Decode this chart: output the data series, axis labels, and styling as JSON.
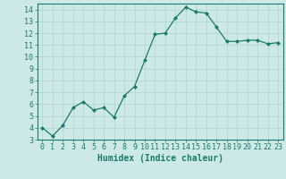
{
  "x": [
    0,
    1,
    2,
    3,
    4,
    5,
    6,
    7,
    8,
    9,
    10,
    11,
    12,
    13,
    14,
    15,
    16,
    17,
    18,
    19,
    20,
    21,
    22,
    23
  ],
  "y": [
    4.0,
    3.3,
    4.2,
    5.7,
    6.2,
    5.5,
    5.7,
    4.9,
    6.7,
    7.5,
    9.7,
    11.9,
    12.0,
    13.3,
    14.2,
    13.8,
    13.7,
    12.5,
    11.3,
    11.3,
    11.4,
    11.4,
    11.1,
    11.2
  ],
  "xlabel": "Humidex (Indice chaleur)",
  "xlim": [
    -0.5,
    23.5
  ],
  "ylim": [
    3,
    14.5
  ],
  "yticks": [
    3,
    4,
    5,
    6,
    7,
    8,
    9,
    10,
    11,
    12,
    13,
    14
  ],
  "xticks": [
    0,
    1,
    2,
    3,
    4,
    5,
    6,
    7,
    8,
    9,
    10,
    11,
    12,
    13,
    14,
    15,
    16,
    17,
    18,
    19,
    20,
    21,
    22,
    23
  ],
  "line_color": "#1a7a6e",
  "marker": "D",
  "marker_size": 2.0,
  "bg_color": "#cce9e7",
  "grid_color": "#afd4d0",
  "axes_color": "#1a7a6e",
  "tick_color": "#1a7a6e",
  "label_color": "#1a7a6e",
  "label_fontsize": 7.0,
  "tick_fontsize": 6.0
}
